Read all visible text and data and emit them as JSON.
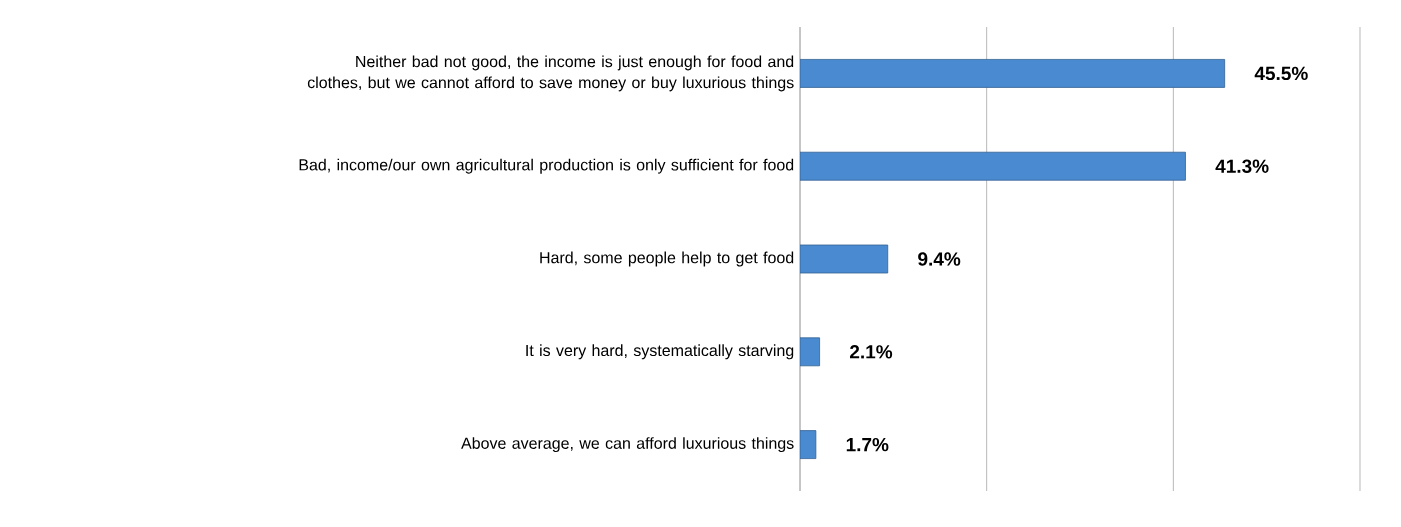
{
  "chart_data": {
    "type": "bar",
    "orientation": "horizontal",
    "categories": [
      "Neither bad not good, the income is just enough for food and clothes, but we cannot afford to save money or buy luxurious things",
      "Bad, income/our own agricultural production is only sufficient for food",
      "Hard, some people help to get food",
      "It is very hard, systematically starving",
      "Above average, we can afford luxurious things"
    ],
    "values": [
      45.5,
      41.3,
      9.4,
      2.1,
      1.7
    ],
    "value_labels": [
      "45.5%",
      "41.3%",
      "9.4%",
      "2.1%",
      "1.7%"
    ],
    "color": "#4a8ad0",
    "xlim": [
      0,
      60
    ],
    "xticks": [
      {
        "value": 0,
        "label": null
      },
      {
        "value": 20,
        "label": null
      },
      {
        "value": 40,
        "label": null
      },
      {
        "value": 60,
        "label": null
      }
    ],
    "grid": "x",
    "tick_labels": "y"
  }
}
